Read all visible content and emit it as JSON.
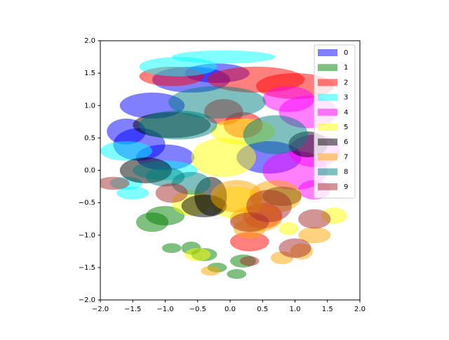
{
  "chart_data": {
    "type": "ellipse",
    "xlim": [
      -2,
      2
    ],
    "ylim": [
      -2,
      2
    ],
    "xticks": [
      {
        "value": -2,
        "label": "−2.0"
      },
      {
        "value": -1.5,
        "label": "−1.5"
      },
      {
        "value": -1,
        "label": "−1.0"
      },
      {
        "value": -0.5,
        "label": "−0.5"
      },
      {
        "value": 0,
        "label": "0.0"
      },
      {
        "value": 0.5,
        "label": "0.5"
      },
      {
        "value": 1,
        "label": "1.0"
      },
      {
        "value": 1.5,
        "label": "1.5"
      },
      {
        "value": 2,
        "label": "2.0"
      }
    ],
    "yticks": [
      {
        "value": -2,
        "label": "−2.0"
      },
      {
        "value": -1.5,
        "label": "−1.5"
      },
      {
        "value": -1,
        "label": "−1.0"
      },
      {
        "value": -0.5,
        "label": "−0.5"
      },
      {
        "value": 0,
        "label": "0.0"
      },
      {
        "value": 0.5,
        "label": "0.5"
      },
      {
        "value": 1,
        "label": "1.0"
      },
      {
        "value": 1.5,
        "label": "1.5"
      },
      {
        "value": 2,
        "label": "2.0"
      }
    ],
    "alpha": 0.5,
    "legend": "upper right",
    "series": [
      {
        "name": "0",
        "color": "blue",
        "x": [
          -1.2,
          -1.4,
          -0.6,
          -1.6,
          -0.2,
          -1.0,
          0.6
        ],
        "y": [
          1.0,
          0.4,
          1.4,
          0.6,
          1.5,
          0.2,
          0.2
        ],
        "width": [
          1.0,
          0.8,
          1.2,
          0.6,
          1.0,
          0.9,
          1.0
        ],
        "height": [
          0.4,
          0.5,
          0.4,
          0.4,
          0.3,
          0.4,
          0.5
        ]
      },
      {
        "name": "1",
        "color": "green",
        "x": [
          -1.0,
          -0.6,
          -0.2,
          0.1,
          -0.9,
          -1.2,
          -0.4,
          0.2
        ],
        "y": [
          -0.7,
          -1.2,
          -1.5,
          -1.6,
          -1.2,
          -0.8,
          -1.3,
          -1.4
        ],
        "width": [
          0.6,
          0.3,
          0.3,
          0.3,
          0.3,
          0.5,
          0.4,
          0.4
        ],
        "height": [
          0.3,
          0.2,
          0.15,
          0.15,
          0.15,
          0.3,
          0.2,
          0.2
        ]
      },
      {
        "name": "2",
        "color": "red",
        "x": [
          0.4,
          1.0,
          -0.9,
          0.5,
          0.2,
          0.3,
          -0.1
        ],
        "y": [
          1.4,
          1.3,
          1.45,
          -0.7,
          0.7,
          -1.1,
          0.9
        ],
        "width": [
          1.5,
          1.2,
          1.0,
          0.6,
          0.6,
          0.6,
          0.6
        ],
        "height": [
          0.4,
          0.4,
          0.3,
          0.4,
          0.4,
          0.3,
          0.4
        ]
      },
      {
        "name": "3",
        "color": "cyan",
        "x": [
          -0.1,
          -1.6,
          -1.6,
          -1.5,
          -0.8,
          -1.0
        ],
        "y": [
          1.75,
          0.3,
          -0.2,
          -0.35,
          1.6,
          0.0
        ],
        "width": [
          1.6,
          0.8,
          0.5,
          0.5,
          1.2,
          1.0
        ],
        "height": [
          0.2,
          0.3,
          0.2,
          0.2,
          0.3,
          0.3
        ]
      },
      {
        "name": "4",
        "color": "magenta",
        "x": [
          1.2,
          1.3,
          1.0,
          0.9,
          1.3
        ],
        "y": [
          0.9,
          0.3,
          0.0,
          1.1,
          -0.3
        ],
        "width": [
          0.9,
          0.8,
          1.0,
          0.8,
          0.5
        ],
        "height": [
          0.5,
          0.5,
          0.6,
          0.4,
          0.3
        ]
      },
      {
        "name": "5",
        "color": "yellow",
        "x": [
          -0.1,
          0.1,
          -0.6,
          0.9,
          1.6,
          -0.5,
          0.2
        ],
        "y": [
          0.2,
          -0.5,
          -0.5,
          -0.9,
          -0.7,
          -1.3,
          0.6
        ],
        "width": [
          1.0,
          0.8,
          0.6,
          0.3,
          0.4,
          0.4,
          1.0
        ],
        "height": [
          0.6,
          0.5,
          0.4,
          0.2,
          0.25,
          0.2,
          0.4
        ]
      },
      {
        "name": "6",
        "color": "black",
        "x": [
          -0.9,
          -1.3,
          -0.3,
          1.2,
          -0.4,
          0.8
        ],
        "y": [
          0.7,
          0.0,
          -0.4,
          0.4,
          -0.55,
          -0.4
        ],
        "width": [
          1.2,
          0.8,
          0.5,
          0.6,
          0.7,
          0.6
        ],
        "height": [
          0.4,
          0.4,
          0.6,
          0.4,
          0.35,
          0.3
        ]
      },
      {
        "name": "7",
        "color": "orange",
        "x": [
          0.7,
          1.3,
          0.3,
          0.8,
          1.1,
          0.1,
          0.4,
          -0.3
        ],
        "y": [
          -0.4,
          -1.0,
          -0.9,
          -1.35,
          -1.25,
          -0.4,
          -0.75,
          -1.55
        ],
        "width": [
          0.8,
          0.5,
          0.5,
          0.35,
          0.35,
          0.8,
          0.8,
          0.3
        ],
        "height": [
          0.5,
          0.25,
          0.3,
          0.2,
          0.25,
          0.5,
          0.4,
          0.15
        ]
      },
      {
        "name": "8",
        "color": "teal",
        "x": [
          -0.2,
          -0.8,
          0.7,
          -1.0,
          -0.6
        ],
        "y": [
          1.05,
          0.7,
          0.55,
          -0.1,
          -0.2
        ],
        "width": [
          1.5,
          1.2,
          1.0,
          0.6,
          0.6
        ],
        "height": [
          0.5,
          0.45,
          0.6,
          0.3,
          0.35
        ]
      },
      {
        "name": "9",
        "color": "brown",
        "x": [
          -1.8,
          0.3,
          1.3,
          1.0,
          0.3,
          0.6,
          -0.9
        ],
        "y": [
          -0.2,
          -0.8,
          -0.75,
          -1.2,
          -1.4,
          -0.55,
          -0.35
        ],
        "width": [
          0.5,
          0.6,
          0.5,
          0.5,
          0.3,
          0.7,
          0.5
        ],
        "height": [
          0.2,
          0.3,
          0.3,
          0.3,
          0.15,
          0.5,
          0.3
        ]
      }
    ]
  }
}
